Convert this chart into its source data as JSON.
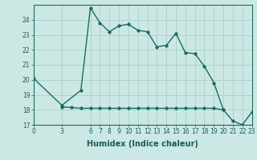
{
  "xlabel": "Humidex (Indice chaleur)",
  "background_color": "#cce8e4",
  "line_color": "#1a6b62",
  "grid_color": "#aed4cc",
  "x_main": [
    0,
    3,
    5,
    6,
    7,
    8,
    9,
    10,
    11,
    12,
    13,
    14,
    15,
    16,
    17,
    18,
    19,
    20,
    21,
    22,
    23
  ],
  "y_main": [
    20.1,
    18.3,
    19.3,
    24.8,
    23.8,
    23.2,
    23.6,
    23.7,
    23.3,
    23.2,
    22.2,
    22.3,
    23.1,
    21.8,
    21.75,
    20.9,
    19.8,
    18.0,
    17.25,
    17.0,
    17.85
  ],
  "x_flat": [
    3,
    4,
    5,
    6,
    7,
    8,
    9,
    10,
    11,
    12,
    13,
    14,
    15,
    16,
    17,
    18,
    19,
    20
  ],
  "y_flat": [
    18.2,
    18.15,
    18.1,
    18.1,
    18.1,
    18.1,
    18.1,
    18.1,
    18.1,
    18.1,
    18.1,
    18.1,
    18.1,
    18.1,
    18.1,
    18.1,
    18.1,
    18.0
  ],
  "xlim": [
    0,
    23
  ],
  "ylim": [
    17,
    25
  ],
  "yticks": [
    17,
    18,
    19,
    20,
    21,
    22,
    23,
    24
  ],
  "xticks": [
    0,
    3,
    6,
    7,
    8,
    9,
    10,
    11,
    12,
    13,
    14,
    15,
    16,
    17,
    18,
    19,
    20,
    21,
    22,
    23
  ],
  "xtick_labels": [
    "0",
    "3",
    "6",
    "7",
    "8",
    "9",
    "10",
    "11",
    "12",
    "13",
    "14",
    "15",
    "16",
    "17",
    "18",
    "19",
    "20",
    "21",
    "22",
    "23"
  ],
  "marker": "D",
  "marker_size": 1.8,
  "line_width": 1.0,
  "font_color": "#1a5c5c",
  "font_size_ticks": 5.5,
  "font_size_xlabel": 7.0
}
